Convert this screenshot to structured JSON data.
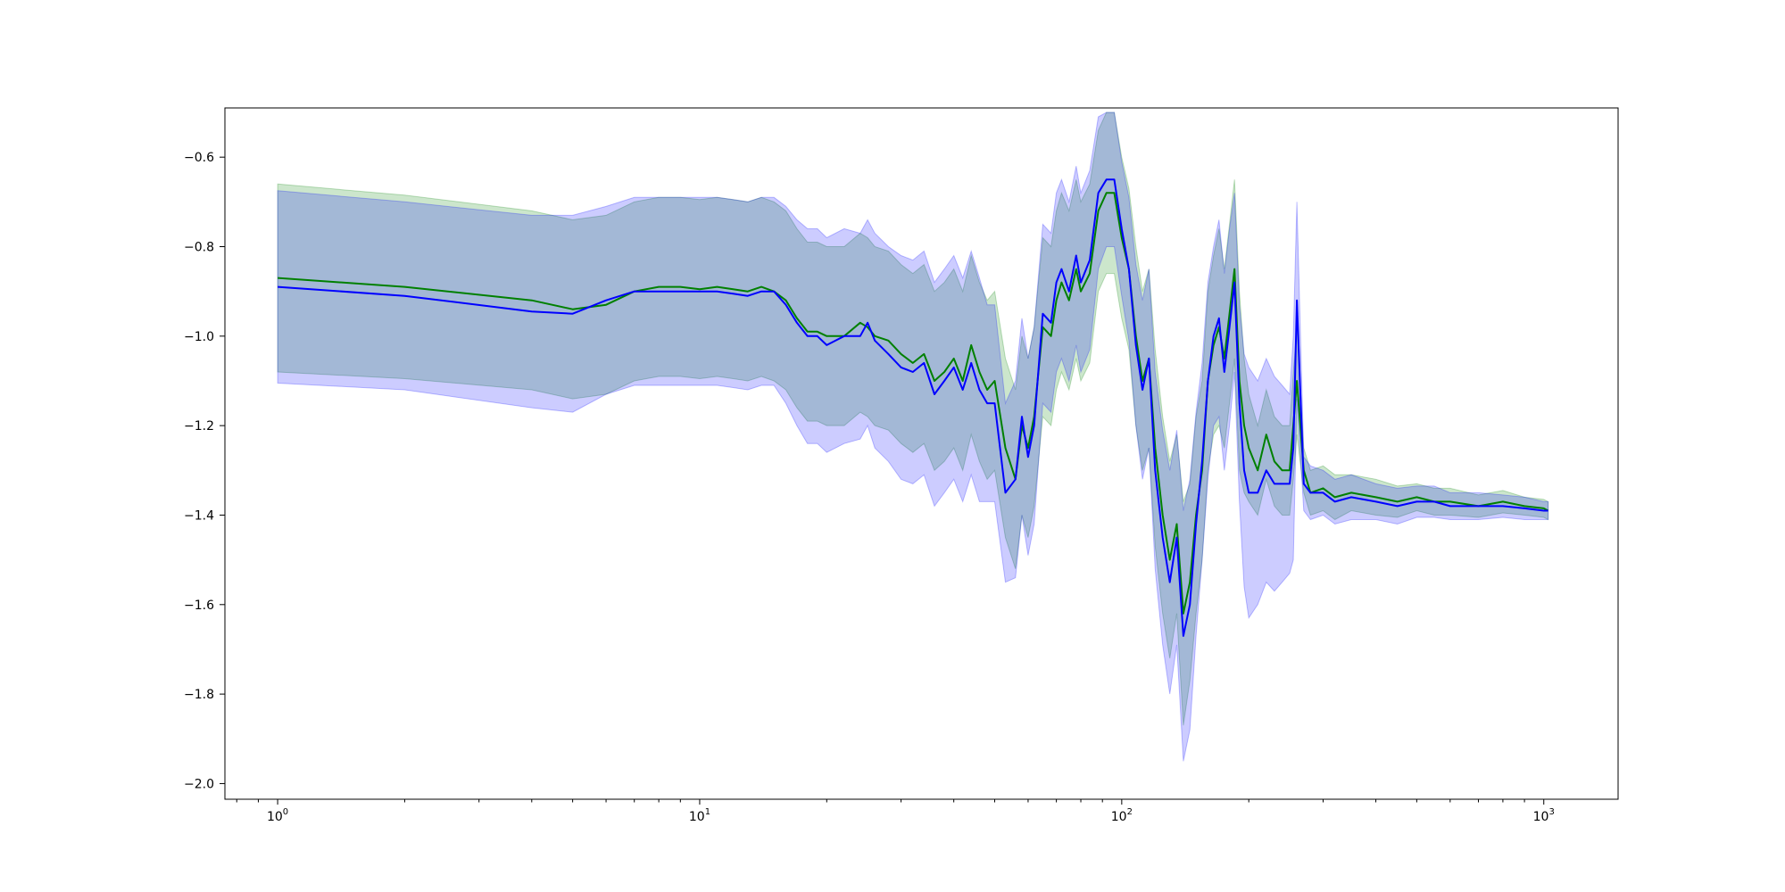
{
  "chart_data": {
    "type": "line",
    "title": "",
    "xlabel": "",
    "ylabel": "",
    "xscale": "log",
    "xlim": [
      0.75,
      1500
    ],
    "ylim": [
      -2.035,
      -0.49
    ],
    "grid": false,
    "x_ticks": [
      {
        "value": 1,
        "base": "10",
        "exp": "0"
      },
      {
        "value": 10,
        "base": "10",
        "exp": "1"
      },
      {
        "value": 100,
        "base": "10",
        "exp": "2"
      },
      {
        "value": 1000,
        "base": "10",
        "exp": "3"
      }
    ],
    "y_ticks": [
      {
        "value": -0.6,
        "label": "−0.6"
      },
      {
        "value": -0.8,
        "label": "−0.8"
      },
      {
        "value": -1.0,
        "label": "−1.0"
      },
      {
        "value": -1.2,
        "label": "−1.2"
      },
      {
        "value": -1.4,
        "label": "−1.4"
      },
      {
        "value": -1.6,
        "label": "−1.6"
      },
      {
        "value": -1.8,
        "label": "−1.8"
      },
      {
        "value": -2.0,
        "label": "−2.0"
      }
    ],
    "band_opacity": 0.2,
    "series": [
      {
        "color": "#008000",
        "x": [
          1,
          2,
          4,
          5,
          6,
          7,
          8,
          9,
          10,
          11,
          12,
          13,
          14,
          15,
          16,
          17,
          18,
          19,
          20,
          22,
          24,
          25,
          26,
          28,
          30,
          32,
          34,
          36,
          38,
          40,
          42,
          44,
          46,
          48,
          50,
          53,
          56,
          58,
          60,
          62,
          65,
          68,
          70,
          72,
          75,
          78,
          80,
          84,
          88,
          92,
          96,
          100,
          104,
          108,
          112,
          116,
          120,
          125,
          130,
          135,
          140,
          145,
          150,
          155,
          160,
          165,
          170,
          175,
          180,
          185,
          190,
          195,
          200,
          210,
          220,
          230,
          240,
          250,
          255,
          260,
          270,
          280,
          300,
          320,
          350,
          400,
          450,
          500,
          550,
          600,
          700,
          800,
          900,
          1000,
          1024
        ],
        "y": [
          -0.87,
          -0.89,
          -0.92,
          -0.94,
          -0.93,
          -0.9,
          -0.89,
          -0.89,
          -0.895,
          -0.89,
          -0.895,
          -0.9,
          -0.89,
          -0.9,
          -0.92,
          -0.96,
          -0.99,
          -0.99,
          -1.0,
          -1.0,
          -0.97,
          -0.98,
          -1.0,
          -1.01,
          -1.04,
          -1.06,
          -1.04,
          -1.1,
          -1.08,
          -1.05,
          -1.1,
          -1.02,
          -1.08,
          -1.12,
          -1.1,
          -1.25,
          -1.32,
          -1.2,
          -1.25,
          -1.18,
          -0.98,
          -1.0,
          -0.92,
          -0.88,
          -0.92,
          -0.85,
          -0.9,
          -0.86,
          -0.72,
          -0.68,
          -0.68,
          -0.78,
          -0.85,
          -1.0,
          -1.1,
          -1.05,
          -1.25,
          -1.4,
          -1.5,
          -1.42,
          -1.62,
          -1.55,
          -1.4,
          -1.3,
          -1.1,
          -1.02,
          -0.98,
          -1.05,
          -0.95,
          -0.85,
          -1.1,
          -1.2,
          -1.25,
          -1.3,
          -1.22,
          -1.28,
          -1.3,
          -1.3,
          -1.2,
          -1.1,
          -1.3,
          -1.35,
          -1.34,
          -1.36,
          -1.35,
          -1.36,
          -1.37,
          -1.36,
          -1.37,
          -1.37,
          -1.38,
          -1.37,
          -1.38,
          -1.385,
          -1.39
        ],
        "std": [
          0.21,
          0.205,
          0.2,
          0.2,
          0.2,
          0.2,
          0.2,
          0.2,
          0.2,
          0.2,
          0.2,
          0.2,
          0.2,
          0.2,
          0.2,
          0.2,
          0.2,
          0.2,
          0.2,
          0.2,
          0.2,
          0.2,
          0.2,
          0.2,
          0.2,
          0.2,
          0.2,
          0.2,
          0.2,
          0.2,
          0.2,
          0.2,
          0.2,
          0.2,
          0.2,
          0.2,
          0.2,
          0.2,
          0.2,
          0.2,
          0.2,
          0.2,
          0.2,
          0.2,
          0.2,
          0.2,
          0.2,
          0.2,
          0.18,
          0.18,
          0.18,
          0.18,
          0.18,
          0.2,
          0.2,
          0.2,
          0.22,
          0.22,
          0.22,
          0.2,
          0.25,
          0.22,
          0.22,
          0.2,
          0.2,
          0.2,
          0.22,
          0.2,
          0.2,
          0.2,
          0.2,
          0.15,
          0.12,
          0.1,
          0.1,
          0.1,
          0.1,
          0.1,
          0.12,
          0.12,
          0.05,
          0.05,
          0.05,
          0.05,
          0.04,
          0.04,
          0.035,
          0.03,
          0.03,
          0.03,
          0.025,
          0.025,
          0.02,
          0.02,
          0.02
        ]
      },
      {
        "color": "#0000ff",
        "x": [
          1,
          2,
          4,
          5,
          6,
          7,
          8,
          9,
          10,
          11,
          12,
          13,
          14,
          15,
          16,
          17,
          18,
          19,
          20,
          22,
          24,
          25,
          26,
          28,
          30,
          32,
          34,
          36,
          38,
          40,
          42,
          44,
          46,
          48,
          50,
          53,
          56,
          58,
          60,
          62,
          65,
          68,
          70,
          72,
          75,
          78,
          80,
          84,
          88,
          92,
          96,
          100,
          104,
          108,
          112,
          116,
          120,
          125,
          130,
          135,
          140,
          145,
          150,
          155,
          160,
          165,
          170,
          175,
          180,
          185,
          190,
          195,
          200,
          210,
          220,
          230,
          240,
          250,
          255,
          260,
          270,
          280,
          300,
          320,
          350,
          400,
          450,
          500,
          550,
          600,
          700,
          800,
          900,
          1000,
          1024
        ],
        "y": [
          -0.89,
          -0.91,
          -0.945,
          -0.95,
          -0.92,
          -0.9,
          -0.9,
          -0.9,
          -0.9,
          -0.9,
          -0.905,
          -0.91,
          -0.9,
          -0.9,
          -0.93,
          -0.97,
          -1.0,
          -1.0,
          -1.02,
          -1.0,
          -1.0,
          -0.97,
          -1.01,
          -1.04,
          -1.07,
          -1.08,
          -1.06,
          -1.13,
          -1.1,
          -1.07,
          -1.12,
          -1.06,
          -1.12,
          -1.15,
          -1.15,
          -1.35,
          -1.32,
          -1.18,
          -1.27,
          -1.2,
          -0.95,
          -0.97,
          -0.88,
          -0.85,
          -0.9,
          -0.82,
          -0.88,
          -0.83,
          -0.68,
          -0.65,
          -0.65,
          -0.76,
          -0.85,
          -1.02,
          -1.12,
          -1.05,
          -1.3,
          -1.45,
          -1.55,
          -1.45,
          -1.67,
          -1.6,
          -1.42,
          -1.28,
          -1.1,
          -1.0,
          -0.96,
          -1.08,
          -0.98,
          -0.88,
          -1.15,
          -1.3,
          -1.35,
          -1.35,
          -1.3,
          -1.33,
          -1.33,
          -1.33,
          -1.25,
          -0.92,
          -1.33,
          -1.35,
          -1.35,
          -1.37,
          -1.36,
          -1.37,
          -1.38,
          -1.37,
          -1.37,
          -1.38,
          -1.38,
          -1.38,
          -1.385,
          -1.39,
          -1.39
        ],
        "std": [
          0.215,
          0.21,
          0.215,
          0.22,
          0.21,
          0.21,
          0.21,
          0.21,
          0.21,
          0.21,
          0.21,
          0.21,
          0.21,
          0.21,
          0.22,
          0.23,
          0.24,
          0.24,
          0.24,
          0.24,
          0.23,
          0.23,
          0.24,
          0.24,
          0.25,
          0.25,
          0.25,
          0.25,
          0.25,
          0.25,
          0.25,
          0.25,
          0.25,
          0.22,
          0.22,
          0.2,
          0.22,
          0.22,
          0.22,
          0.22,
          0.2,
          0.2,
          0.2,
          0.2,
          0.2,
          0.2,
          0.2,
          0.2,
          0.17,
          0.15,
          0.15,
          0.15,
          0.16,
          0.18,
          0.2,
          0.2,
          0.22,
          0.24,
          0.25,
          0.24,
          0.28,
          0.28,
          0.25,
          0.22,
          0.22,
          0.2,
          0.22,
          0.22,
          0.22,
          0.2,
          0.22,
          0.26,
          0.28,
          0.25,
          0.25,
          0.24,
          0.22,
          0.2,
          0.25,
          0.22,
          0.06,
          0.06,
          0.05,
          0.05,
          0.05,
          0.04,
          0.04,
          0.035,
          0.035,
          0.03,
          0.03,
          0.025,
          0.025,
          0.02,
          0.02
        ]
      }
    ]
  }
}
